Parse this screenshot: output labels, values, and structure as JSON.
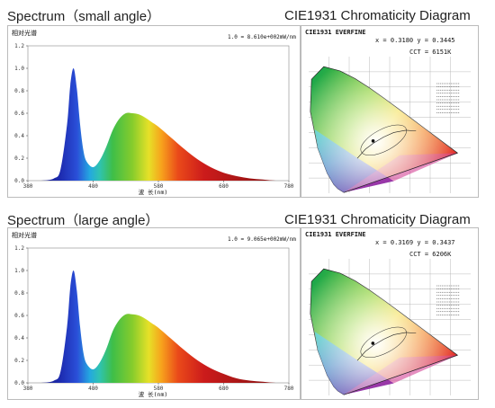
{
  "sections": [
    {
      "spectrum_heading": "Spectrum（small angle）",
      "cie_heading": "CIE1931 Chromaticity Diagram",
      "panel_title": "相对光谱",
      "scale_text": "1.0 = 8.610e+002mW/nm",
      "cie_header": "CIE1931  EVERFINE",
      "xy_text": "x = 0.3180  y = 0.3445",
      "cct_text": "CCT = 6151K"
    },
    {
      "spectrum_heading": "Spectrum（large angle）",
      "cie_heading": "CIE1931 Chromaticity Diagram",
      "panel_title": "相对光谱",
      "scale_text": "1.0 = 9.065e+002mW/nm",
      "cie_header": "CIE1931  EVERFINE",
      "xy_text": "x = 0.3169  y = 0.3437",
      "cct_text": "CCT = 6206K"
    }
  ],
  "chart_data": [
    {
      "type": "area",
      "xlabel": "波 长(nm)",
      "ylabel": "相对光谱",
      "x_ticks": [
        380,
        480,
        580,
        680,
        780
      ],
      "y_ticks": [
        "0.0",
        "0.2",
        "0.4",
        "0.6",
        "0.8",
        "1.0",
        "1.2"
      ],
      "xlim": [
        380,
        780
      ],
      "ylim": [
        0,
        1.2
      ],
      "x": [
        380,
        400,
        420,
        430,
        440,
        445,
        450,
        455,
        460,
        465,
        470,
        480,
        490,
        500,
        510,
        520,
        530,
        540,
        550,
        560,
        570,
        580,
        600,
        620,
        640,
        660,
        680,
        700,
        720,
        740,
        760,
        780
      ],
      "y": [
        0.0,
        0.0,
        0.02,
        0.1,
        0.5,
        0.85,
        1.0,
        0.82,
        0.5,
        0.27,
        0.17,
        0.12,
        0.18,
        0.3,
        0.45,
        0.55,
        0.6,
        0.6,
        0.59,
        0.56,
        0.52,
        0.48,
        0.38,
        0.28,
        0.19,
        0.12,
        0.07,
        0.04,
        0.02,
        0.01,
        0.0,
        0.0
      ]
    },
    {
      "type": "scatter",
      "title": "CIE1931  EVERFINE",
      "points": [
        {
          "x": 0.318,
          "y": 0.3445
        }
      ]
    },
    {
      "type": "area",
      "xlabel": "波 长(nm)",
      "ylabel": "相对光谱",
      "x_ticks": [
        380,
        480,
        580,
        680,
        780
      ],
      "y_ticks": [
        "0.0",
        "0.2",
        "0.4",
        "0.6",
        "0.8",
        "1.0",
        "1.2"
      ],
      "xlim": [
        380,
        780
      ],
      "ylim": [
        0,
        1.2
      ],
      "x": [
        380,
        400,
        420,
        430,
        440,
        445,
        450,
        455,
        460,
        465,
        470,
        480,
        490,
        500,
        510,
        520,
        530,
        540,
        550,
        560,
        570,
        580,
        600,
        620,
        640,
        660,
        680,
        700,
        720,
        740,
        760,
        780
      ],
      "y": [
        0.0,
        0.0,
        0.02,
        0.1,
        0.5,
        0.85,
        1.0,
        0.82,
        0.5,
        0.27,
        0.17,
        0.12,
        0.18,
        0.3,
        0.46,
        0.56,
        0.61,
        0.61,
        0.6,
        0.57,
        0.53,
        0.49,
        0.39,
        0.29,
        0.2,
        0.13,
        0.08,
        0.04,
        0.02,
        0.01,
        0.0,
        0.0
      ]
    },
    {
      "type": "scatter",
      "title": "CIE1931  EVERFINE",
      "points": [
        {
          "x": 0.3169,
          "y": 0.3437
        }
      ]
    }
  ]
}
